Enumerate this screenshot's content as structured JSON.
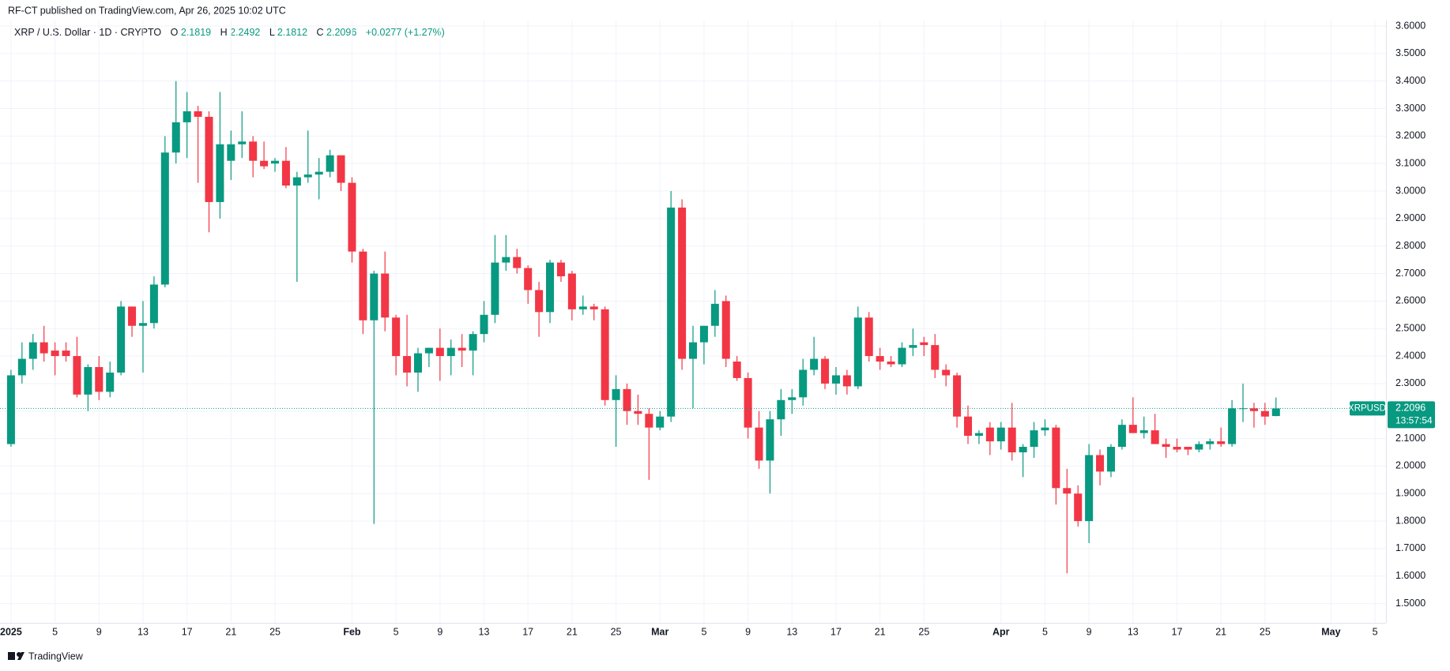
{
  "header": "RF-CT published on TradingView.com, Apr 26, 2025 10:02 UTC",
  "footer": "TradingView",
  "chart_data": {
    "type": "candlestick",
    "title": "XRP / U.S. Dollar · 1D · CRYPTO",
    "ohlc_labels": [
      "O",
      "H",
      "L",
      "C"
    ],
    "change": "+0.0277 (+1.27%)",
    "symbol": "XRPUSD",
    "countdown": "13:57:54",
    "up_color": "#089981",
    "down_color": "#f23645",
    "grid": true,
    "xlim": [
      "2024-12-31",
      "2025-05-06"
    ],
    "ylim": [
      1.43,
      3.62
    ],
    "yticks": [
      {
        "value": 1.5,
        "label": "1.5000"
      },
      {
        "value": 1.6,
        "label": "1.6000"
      },
      {
        "value": 1.7,
        "label": "1.7000"
      },
      {
        "value": 1.8,
        "label": "1.8000"
      },
      {
        "value": 1.9,
        "label": "1.9000"
      },
      {
        "value": 2.0,
        "label": "2.0000"
      },
      {
        "value": 2.1,
        "label": "2.1000"
      },
      {
        "value": 2.2,
        "label": "2.2000"
      },
      {
        "value": 2.3,
        "label": "2.3000"
      },
      {
        "value": 2.4,
        "label": "2.4000"
      },
      {
        "value": 2.5,
        "label": "2.5000"
      },
      {
        "value": 2.6,
        "label": "2.6000"
      },
      {
        "value": 2.7,
        "label": "2.7000"
      },
      {
        "value": 2.8,
        "label": "2.8000"
      },
      {
        "value": 2.9,
        "label": "2.9000"
      },
      {
        "value": 3.0,
        "label": "3.0000"
      },
      {
        "value": 3.1,
        "label": "3.1000"
      },
      {
        "value": 3.2,
        "label": "3.2000"
      },
      {
        "value": 3.3,
        "label": "3.3000"
      },
      {
        "value": 3.4,
        "label": "3.4000"
      },
      {
        "value": 3.5,
        "label": "3.5000"
      },
      {
        "value": 3.6,
        "label": "3.6000"
      }
    ],
    "xticks": [
      {
        "value": "2025-01-01",
        "label": "2025"
      },
      {
        "value": "2025-01-05",
        "label": "5"
      },
      {
        "value": "2025-01-09",
        "label": "9"
      },
      {
        "value": "2025-01-13",
        "label": "13"
      },
      {
        "value": "2025-01-17",
        "label": "17"
      },
      {
        "value": "2025-01-21",
        "label": "21"
      },
      {
        "value": "2025-01-25",
        "label": "25"
      },
      {
        "value": "2025-02-01",
        "label": "Feb"
      },
      {
        "value": "2025-02-05",
        "label": "5"
      },
      {
        "value": "2025-02-09",
        "label": "9"
      },
      {
        "value": "2025-02-13",
        "label": "13"
      },
      {
        "value": "2025-02-17",
        "label": "17"
      },
      {
        "value": "2025-02-21",
        "label": "21"
      },
      {
        "value": "2025-02-25",
        "label": "25"
      },
      {
        "value": "2025-03-01",
        "label": "Mar"
      },
      {
        "value": "2025-03-05",
        "label": "5"
      },
      {
        "value": "2025-03-09",
        "label": "9"
      },
      {
        "value": "2025-03-13",
        "label": "13"
      },
      {
        "value": "2025-03-17",
        "label": "17"
      },
      {
        "value": "2025-03-21",
        "label": "21"
      },
      {
        "value": "2025-03-25",
        "label": "25"
      },
      {
        "value": "2025-04-01",
        "label": "Apr"
      },
      {
        "value": "2025-04-05",
        "label": "5"
      },
      {
        "value": "2025-04-09",
        "label": "9"
      },
      {
        "value": "2025-04-13",
        "label": "13"
      },
      {
        "value": "2025-04-17",
        "label": "17"
      },
      {
        "value": "2025-04-21",
        "label": "21"
      },
      {
        "value": "2025-04-25",
        "label": "25"
      },
      {
        "value": "2025-05-01",
        "label": "May"
      },
      {
        "value": "2025-05-05",
        "label": "5"
      }
    ],
    "x": [
      "2025-01-01",
      "2025-01-02",
      "2025-01-03",
      "2025-01-04",
      "2025-01-05",
      "2025-01-06",
      "2025-01-07",
      "2025-01-08",
      "2025-01-09",
      "2025-01-10",
      "2025-01-11",
      "2025-01-12",
      "2025-01-13",
      "2025-01-14",
      "2025-01-15",
      "2025-01-16",
      "2025-01-17",
      "2025-01-18",
      "2025-01-19",
      "2025-01-20",
      "2025-01-21",
      "2025-01-22",
      "2025-01-23",
      "2025-01-24",
      "2025-01-25",
      "2025-01-26",
      "2025-01-27",
      "2025-01-28",
      "2025-01-29",
      "2025-01-30",
      "2025-01-31",
      "2025-02-01",
      "2025-02-02",
      "2025-02-03",
      "2025-02-04",
      "2025-02-05",
      "2025-02-06",
      "2025-02-07",
      "2025-02-08",
      "2025-02-09",
      "2025-02-10",
      "2025-02-11",
      "2025-02-12",
      "2025-02-13",
      "2025-02-14",
      "2025-02-15",
      "2025-02-16",
      "2025-02-17",
      "2025-02-18",
      "2025-02-19",
      "2025-02-20",
      "2025-02-21",
      "2025-02-22",
      "2025-02-23",
      "2025-02-24",
      "2025-02-25",
      "2025-02-26",
      "2025-02-27",
      "2025-02-28",
      "2025-03-01",
      "2025-03-02",
      "2025-03-03",
      "2025-03-04",
      "2025-03-05",
      "2025-03-06",
      "2025-03-07",
      "2025-03-08",
      "2025-03-09",
      "2025-03-10",
      "2025-03-11",
      "2025-03-12",
      "2025-03-13",
      "2025-03-14",
      "2025-03-15",
      "2025-03-16",
      "2025-03-17",
      "2025-03-18",
      "2025-03-19",
      "2025-03-20",
      "2025-03-21",
      "2025-03-22",
      "2025-03-23",
      "2025-03-24",
      "2025-03-25",
      "2025-03-26",
      "2025-03-27",
      "2025-03-28",
      "2025-03-29",
      "2025-03-30",
      "2025-03-31",
      "2025-04-01",
      "2025-04-02",
      "2025-04-03",
      "2025-04-04",
      "2025-04-05",
      "2025-04-06",
      "2025-04-07",
      "2025-04-08",
      "2025-04-09",
      "2025-04-10",
      "2025-04-11",
      "2025-04-12",
      "2025-04-13",
      "2025-04-14",
      "2025-04-15",
      "2025-04-16",
      "2025-04-17",
      "2025-04-18",
      "2025-04-19",
      "2025-04-20",
      "2025-04-21",
      "2025-04-22",
      "2025-04-23",
      "2025-04-24",
      "2025-04-25",
      "2025-04-26"
    ],
    "open": [
      2.08,
      2.33,
      2.39,
      2.45,
      2.42,
      2.42,
      2.4,
      2.26,
      2.36,
      2.27,
      2.34,
      2.58,
      2.51,
      2.52,
      2.66,
      3.14,
      3.25,
      3.29,
      3.27,
      2.96,
      3.11,
      3.17,
      3.18,
      3.11,
      3.1,
      3.11,
      3.02,
      3.05,
      3.06,
      3.07,
      3.13,
      3.03,
      2.78,
      2.53,
      2.7,
      2.54,
      2.4,
      2.34,
      2.41,
      2.43,
      2.4,
      2.43,
      2.42,
      2.48,
      2.55,
      2.74,
      2.76,
      2.72,
      2.64,
      2.56,
      2.74,
      2.7,
      2.57,
      2.58,
      2.57,
      2.24,
      2.28,
      2.2,
      2.19,
      2.14,
      2.18,
      2.94,
      2.39,
      2.45,
      2.51,
      2.6,
      2.38,
      2.32,
      2.14,
      2.02,
      2.17,
      2.24,
      2.25,
      2.35,
      2.39,
      2.3,
      2.33,
      2.29,
      2.54,
      2.4,
      2.38,
      2.37,
      2.43,
      2.45,
      2.44,
      2.35,
      2.33,
      2.18,
      2.11,
      2.14,
      2.09,
      2.14,
      2.05,
      2.07,
      2.13,
      2.14,
      1.92,
      1.9,
      1.8,
      2.04,
      1.98,
      2.07,
      2.15,
      2.12,
      2.13,
      2.08,
      2.07,
      2.07,
      2.06,
      2.08,
      2.09,
      2.08,
      2.21,
      2.21,
      2.2,
      2.1819
    ],
    "high": [
      2.35,
      2.45,
      2.48,
      2.51,
      2.45,
      2.45,
      2.47,
      2.37,
      2.4,
      2.38,
      2.6,
      2.58,
      2.6,
      2.69,
      3.2,
      3.4,
      3.36,
      3.31,
      3.29,
      3.36,
      3.22,
      3.29,
      3.2,
      3.18,
      3.12,
      3.16,
      3.07,
      3.22,
      3.12,
      3.15,
      3.13,
      3.05,
      2.79,
      2.71,
      2.78,
      2.55,
      2.55,
      2.43,
      2.43,
      2.5,
      2.46,
      2.48,
      2.49,
      2.6,
      2.84,
      2.84,
      2.79,
      2.73,
      2.67,
      2.75,
      2.75,
      2.71,
      2.62,
      2.59,
      2.58,
      2.33,
      2.3,
      2.26,
      2.21,
      2.2,
      3.0,
      2.97,
      2.51,
      2.51,
      2.64,
      2.62,
      2.4,
      2.34,
      2.2,
      2.2,
      2.28,
      2.28,
      2.39,
      2.47,
      2.4,
      2.36,
      2.35,
      2.58,
      2.56,
      2.43,
      2.4,
      2.45,
      2.5,
      2.47,
      2.48,
      2.37,
      2.34,
      2.22,
      2.13,
      2.16,
      2.16,
      2.23,
      2.08,
      2.16,
      2.17,
      2.15,
      1.99,
      1.93,
      2.08,
      2.06,
      2.08,
      2.17,
      2.25,
      2.18,
      2.19,
      2.1,
      2.1,
      2.07,
      2.09,
      2.1,
      2.14,
      2.24,
      2.3,
      2.23,
      2.23,
      2.2492
    ],
    "low": [
      2.07,
      2.3,
      2.35,
      2.38,
      2.33,
      2.38,
      2.25,
      2.2,
      2.24,
      2.25,
      2.33,
      2.47,
      2.34,
      2.5,
      2.65,
      3.1,
      3.12,
      3.03,
      2.85,
      2.9,
      3.04,
      3.12,
      3.05,
      3.08,
      3.07,
      3.01,
      2.67,
      3.03,
      2.97,
      3.05,
      3.0,
      2.74,
      2.48,
      1.79,
      2.49,
      2.33,
      2.29,
      2.27,
      2.36,
      2.31,
      2.33,
      2.36,
      2.33,
      2.45,
      2.52,
      2.71,
      2.7,
      2.59,
      2.47,
      2.52,
      2.67,
      2.53,
      2.55,
      2.53,
      2.22,
      2.07,
      2.15,
      2.15,
      1.95,
      2.13,
      2.16,
      2.35,
      2.21,
      2.37,
      2.47,
      2.36,
      2.31,
      2.1,
      1.99,
      1.9,
      2.11,
      2.19,
      2.22,
      2.33,
      2.28,
      2.26,
      2.26,
      2.28,
      2.38,
      2.35,
      2.36,
      2.36,
      2.4,
      2.4,
      2.32,
      2.29,
      2.14,
      2.08,
      2.08,
      2.04,
      2.06,
      2.02,
      1.96,
      2.03,
      2.11,
      1.86,
      1.61,
      1.78,
      1.72,
      1.93,
      1.96,
      2.06,
      2.12,
      2.1,
      2.08,
      2.03,
      2.05,
      2.04,
      2.05,
      2.06,
      2.07,
      2.07,
      2.16,
      2.14,
      2.15,
      2.1812
    ],
    "close": [
      2.33,
      2.39,
      2.45,
      2.41,
      2.4,
      2.4,
      2.26,
      2.36,
      2.27,
      2.34,
      2.58,
      2.51,
      2.52,
      2.66,
      3.14,
      3.25,
      3.29,
      3.27,
      2.96,
      3.17,
      3.17,
      3.18,
      3.11,
      3.09,
      3.11,
      3.02,
      3.05,
      3.06,
      3.07,
      3.13,
      3.03,
      2.78,
      2.53,
      2.7,
      2.54,
      2.4,
      2.34,
      2.41,
      2.43,
      2.4,
      2.43,
      2.42,
      2.48,
      2.55,
      2.74,
      2.76,
      2.72,
      2.64,
      2.56,
      2.74,
      2.69,
      2.57,
      2.58,
      2.57,
      2.24,
      2.28,
      2.2,
      2.19,
      2.14,
      2.18,
      2.94,
      2.39,
      2.45,
      2.51,
      2.59,
      2.39,
      2.32,
      2.14,
      2.02,
      2.17,
      2.24,
      2.25,
      2.35,
      2.39,
      2.3,
      2.33,
      2.29,
      2.54,
      2.4,
      2.38,
      2.37,
      2.43,
      2.44,
      2.44,
      2.35,
      2.33,
      2.18,
      2.11,
      2.12,
      2.09,
      2.14,
      2.05,
      2.07,
      2.13,
      2.14,
      1.92,
      1.9,
      1.8,
      2.04,
      1.98,
      2.07,
      2.15,
      2.12,
      2.13,
      2.08,
      2.07,
      2.06,
      2.06,
      2.08,
      2.09,
      2.08,
      2.21,
      2.21,
      2.2,
      2.18,
      2.2096
    ]
  }
}
